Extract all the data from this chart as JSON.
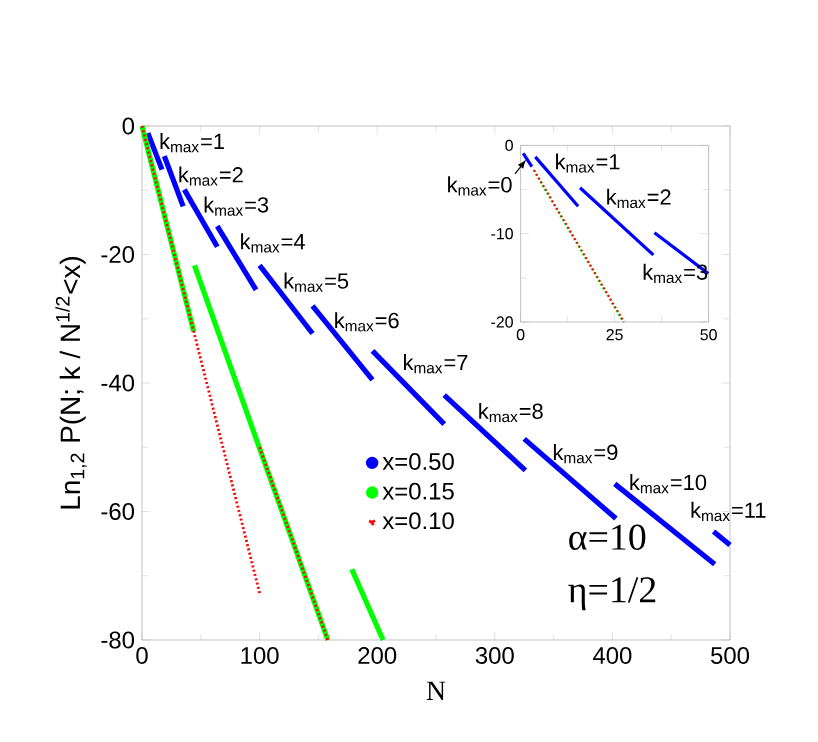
{
  "chart_data": [
    {
      "type": "line",
      "xlabel": "N",
      "ylabel": "Ln$_{1,2}$ P(N; k / N$^{1/2}$<x)",
      "xlim": [
        0,
        500
      ],
      "ylim": [
        -80,
        0
      ],
      "xticks": [
        0,
        100,
        200,
        300,
        400,
        500
      ],
      "yticks": [
        0,
        -20,
        -40,
        -60,
        -80
      ],
      "legend": "center",
      "series": [
        {
          "name": "x=0.50",
          "color": "#0000ff",
          "line_style": "solid",
          "x": [
            5,
            17
          ],
          "values": [
            -1.1,
            -6.8
          ]
        },
        {
          "color": "#0000ff",
          "line_style": "solid",
          "x": [
            19,
            35
          ],
          "values": [
            -4.7,
            -12.5
          ]
        },
        {
          "color": "#0000ff",
          "line_style": "solid",
          "x": [
            36,
            64
          ],
          "values": [
            -9.9,
            -18.8
          ]
        },
        {
          "color": "#0000ff",
          "line_style": "solid",
          "x": [
            64,
            97
          ],
          "values": [
            -15.6,
            -25.5
          ]
        },
        {
          "color": "#0000ff",
          "line_style": "solid",
          "x": [
            100,
            145
          ],
          "values": [
            -21.7,
            -32.3
          ]
        },
        {
          "color": "#0000ff",
          "line_style": "solid",
          "x": [
            145,
            196
          ],
          "values": [
            -28,
            -39.5
          ]
        },
        {
          "color": "#0000ff",
          "line_style": "solid",
          "x": [
            196,
            257
          ],
          "values": [
            -35,
            -46.4
          ]
        },
        {
          "color": "#0000ff",
          "line_style": "solid",
          "x": [
            257,
            326
          ],
          "values": [
            -41.9,
            -53.6
          ]
        },
        {
          "color": "#0000ff",
          "line_style": "solid",
          "x": [
            325,
            403
          ],
          "values": [
            -48.7,
            -61.1
          ]
        },
        {
          "color": "#0000ff",
          "line_style": "solid",
          "x": [
            402,
            487
          ],
          "values": [
            -55.7,
            -68.2
          ]
        },
        {
          "color": "#0000ff",
          "line_style": "solid",
          "x": [
            486,
            500
          ],
          "values": [
            -63.1,
            -65.2
          ]
        },
        {
          "name": "x=0.15",
          "color": "#00ff00",
          "line_style": "solid",
          "x": [
            0,
            44
          ],
          "values": [
            0,
            -32
          ]
        },
        {
          "color": "#00ff00",
          "line_style": "solid",
          "x": [
            44.6,
            158
          ],
          "values": [
            -21.7,
            -80
          ]
        },
        {
          "color": "#00ff00",
          "line_style": "solid",
          "x": [
            178.4,
            205
          ],
          "values": [
            -69,
            -80
          ]
        },
        {
          "name": "x=0.10",
          "color": "#ff0000",
          "line_style": "dotted",
          "x": [
            0,
            100
          ],
          "values": [
            0,
            -72.7
          ]
        },
        {
          "color": "#ff0000",
          "line_style": "dotted",
          "x": [
            100,
            158
          ],
          "values": [
            -50,
            -80
          ]
        }
      ],
      "annotations": [
        "k$_{max}$=1",
        "k$_{max}$=2",
        "k$_{max}$=3",
        "k$_{max}$=4",
        "k$_{max}$=5",
        "k$_{max}$=6",
        "k$_{max}$=7",
        "k$_{max}$=8",
        "k$_{max}$=9",
        "k$_{max}$=10",
        "k$_{max}$=11",
        "α=10",
        "η=1/2"
      ]
    },
    {
      "type": "line",
      "xlim": [
        0,
        50
      ],
      "ylim": [
        -20,
        0
      ],
      "xticks": [
        0,
        25,
        50
      ],
      "yticks": [
        0,
        -10,
        -20
      ],
      "series": [
        {
          "color": "#0000ff",
          "line_style": "solid",
          "x": [
            0.7,
            3
          ],
          "values": [
            -0.9,
            -2.4
          ]
        },
        {
          "color": "#0000ff",
          "line_style": "solid",
          "x": [
            3.9,
            15.3
          ],
          "values": [
            -1.3,
            -6.9
          ]
        },
        {
          "color": "#0000ff",
          "line_style": "solid",
          "x": [
            15.8,
            35.3
          ],
          "values": [
            -4.8,
            -12.4
          ]
        },
        {
          "color": "#0000ff",
          "line_style": "solid",
          "x": [
            35.6,
            49.9
          ],
          "values": [
            -9.9,
            -14.5
          ]
        },
        {
          "color": "#00ff00",
          "line_style": "dotted",
          "x": [
            3.4,
            27.3
          ],
          "values": [
            -2.8,
            -20
          ]
        },
        {
          "color": "#ff0000",
          "line_style": "dotted",
          "x": [
            3.6,
            27.5
          ],
          "values": [
            -2.8,
            -20
          ]
        }
      ],
      "annotations": [
        "k$_{max}$=0",
        "k$_{max}$=1",
        "k$_{max}$=2",
        "k$_{max}$=3"
      ]
    }
  ]
}
